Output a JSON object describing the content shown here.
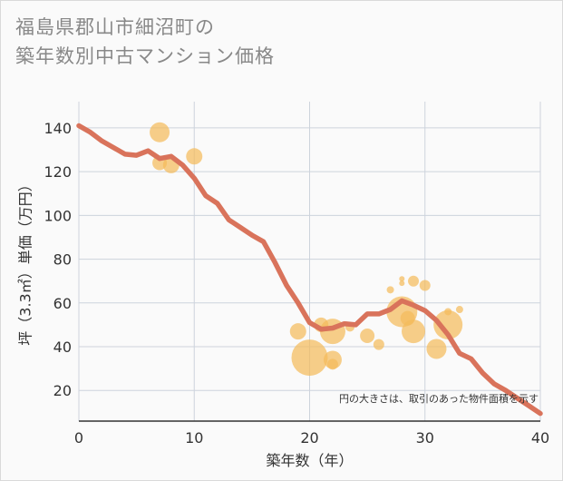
{
  "title": {
    "line1": "福島県郡山市細沼町の",
    "line2": "築年数別中古マンション価格"
  },
  "chart_data": {
    "type": "scatter",
    "xlabel": "築年数（年）",
    "ylabel": "坪（3.3㎡）単価（万円）",
    "xlim": [
      0,
      40
    ],
    "ylim": [
      6,
      152
    ],
    "x_ticks": [
      "0",
      "10",
      "20",
      "30",
      "40"
    ],
    "y_ticks": [
      "20",
      "40",
      "60",
      "80",
      "100",
      "120",
      "140"
    ],
    "grid": true,
    "annotation": "円の大きさは、取引のあった物件面積を示す",
    "colors": {
      "bubble": "#f4bb5b",
      "trend": "#d9735b",
      "grid": "#cdd3dc"
    },
    "scatter_points": [
      {
        "x": 7,
        "y": 138,
        "size": 11
      },
      {
        "x": 7,
        "y": 124,
        "size": 8
      },
      {
        "x": 8,
        "y": 123,
        "size": 9
      },
      {
        "x": 10,
        "y": 127,
        "size": 9
      },
      {
        "x": 19,
        "y": 47,
        "size": 9
      },
      {
        "x": 20,
        "y": 35,
        "size": 20
      },
      {
        "x": 21,
        "y": 50,
        "size": 8
      },
      {
        "x": 22,
        "y": 47,
        "size": 14
      },
      {
        "x": 22,
        "y": 34,
        "size": 10
      },
      {
        "x": 22,
        "y": 32,
        "size": 6
      },
      {
        "x": 23.5,
        "y": 49,
        "size": 5
      },
      {
        "x": 25,
        "y": 45,
        "size": 8
      },
      {
        "x": 26,
        "y": 41,
        "size": 6
      },
      {
        "x": 27,
        "y": 66,
        "size": 4
      },
      {
        "x": 28,
        "y": 71,
        "size": 3
      },
      {
        "x": 28,
        "y": 69,
        "size": 3
      },
      {
        "x": 28,
        "y": 56,
        "size": 17
      },
      {
        "x": 28.5,
        "y": 53,
        "size": 8
      },
      {
        "x": 29,
        "y": 70,
        "size": 6
      },
      {
        "x": 29,
        "y": 47,
        "size": 13
      },
      {
        "x": 30,
        "y": 68,
        "size": 6
      },
      {
        "x": 31,
        "y": 39,
        "size": 11
      },
      {
        "x": 32,
        "y": 56,
        "size": 4
      },
      {
        "x": 32,
        "y": 50,
        "size": 16
      },
      {
        "x": 33,
        "y": 57,
        "size": 4
      }
    ],
    "trend_line": {
      "x": [
        0,
        1,
        2,
        3,
        4,
        5,
        6,
        7,
        8,
        9,
        10,
        11,
        12,
        13,
        14,
        15,
        16,
        17,
        18,
        19,
        20,
        21,
        22,
        23,
        24,
        25,
        26,
        27,
        28,
        29,
        30,
        31,
        32,
        33,
        34,
        35,
        36,
        37,
        38,
        39,
        40
      ],
      "y": [
        141,
        138,
        134,
        131,
        128,
        127.5,
        129.5,
        126,
        127,
        123,
        117,
        109,
        105.5,
        98,
        94.5,
        91,
        88,
        78.5,
        68,
        60,
        51,
        48,
        48.5,
        50.5,
        50,
        55,
        55,
        57,
        61,
        59,
        56.5,
        52,
        45.5,
        37,
        34.5,
        28,
        23,
        20,
        16.5,
        13,
        9.5
      ]
    }
  }
}
